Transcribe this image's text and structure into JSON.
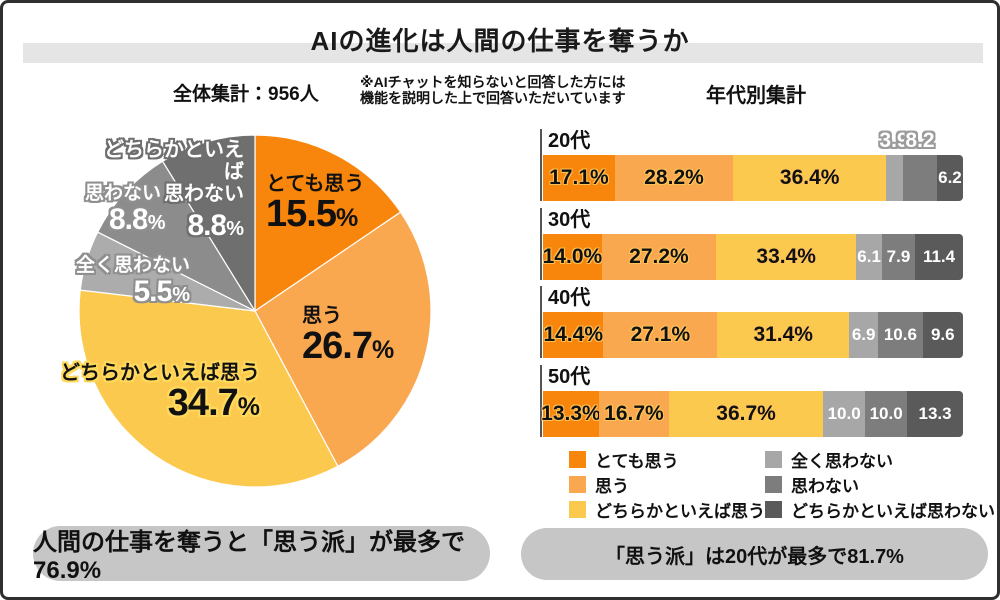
{
  "title": "AIの進化は人間の仕事を奪うか",
  "header": {
    "total_label": "全体集計：956人",
    "note_line1": "※AIチャットを知らないと回答した方には",
    "note_line2": "機能を説明した上で回答いただいています",
    "age_section_label": "年代別集計"
  },
  "palette": {
    "strong_orange": "#F8860D",
    "orange": "#FAA84F",
    "yellow": "#FCC94F",
    "light_gray": "#A7A7A7",
    "mid_gray": "#7D7D7D",
    "dark_gray": "#5A5A5A",
    "title_band": "#E5E5E5",
    "pill_gray": "#C6C6C6",
    "border": "#2F2F2F"
  },
  "chart_data": [
    {
      "type": "pie",
      "title": "全体集計：956人",
      "labels": [
        "とても思う",
        "思う",
        "どちらかといえば思う",
        "全く思わない",
        "思わない",
        "どちらかといえば思わない"
      ],
      "values": [
        15.5,
        26.7,
        34.7,
        5.5,
        8.8,
        8.8
      ],
      "colors": [
        "#F8860D",
        "#FAA84F",
        "#FCC94F",
        "#ACACAC",
        "#8C8C8C",
        "#6F6F6F"
      ],
      "start_angle_deg": 0,
      "clockwise": true,
      "legend_position": "none"
    },
    {
      "type": "bar",
      "variant": "horizontal-stacked",
      "title": "年代別集計",
      "categories": [
        "20代",
        "30代",
        "40代",
        "50代"
      ],
      "series": [
        {
          "name": "とても思う",
          "color": "#F8860D",
          "values": [
            17.1,
            14.0,
            14.4,
            13.3
          ]
        },
        {
          "name": "思う",
          "color": "#FAA84F",
          "values": [
            28.2,
            27.2,
            27.1,
            16.7
          ]
        },
        {
          "name": "どちらかといえば思う",
          "color": "#FCC94F",
          "values": [
            36.4,
            33.4,
            31.4,
            36.7
          ]
        },
        {
          "name": "全く思わない",
          "color": "#A7A7A7",
          "values": [
            3.9,
            6.1,
            6.9,
            10.0
          ]
        },
        {
          "name": "思わない",
          "color": "#7D7D7D",
          "values": [
            8.2,
            7.9,
            10.6,
            10.0
          ]
        },
        {
          "name": "どちらかといえば思わない",
          "color": "#5A5A5A",
          "values": [
            6.2,
            11.4,
            9.6,
            13.3
          ]
        }
      ],
      "value_labels": [
        [
          "17.1%",
          "28.2%",
          "36.4%",
          "3.9",
          "8.2",
          "6.2"
        ],
        [
          "14.0%",
          "27.2%",
          "33.4%",
          "6.1",
          "7.9",
          "11.4"
        ],
        [
          "14.4%",
          "27.1%",
          "31.4%",
          "6.9",
          "10.6",
          "9.6"
        ],
        [
          "13.3%",
          "16.7%",
          "36.7%",
          "10.0",
          "10.0",
          "13.3"
        ]
      ],
      "outside_label_indices": [
        [
          3,
          4
        ],
        [],
        [],
        []
      ],
      "xlim": [
        0,
        100
      ],
      "legend_position": "bottom"
    }
  ],
  "pie_labels": [
    {
      "name": "とても思う",
      "value": "15.5",
      "unit": "%"
    },
    {
      "name": "思う",
      "value": "26.7",
      "unit": "%"
    },
    {
      "name": "どちらかといえば思う",
      "value": "34.7",
      "unit": "%"
    },
    {
      "name": "全く思わない",
      "value": "5.5",
      "unit": "%"
    },
    {
      "name": "思わない",
      "value": "8.8",
      "unit": "%"
    },
    {
      "name_line1": "どちらかといえば",
      "name_line2": "思わない",
      "value": "8.8",
      "unit": "%"
    }
  ],
  "footers": {
    "left": "人間の仕事を奪うと「思う派」が最多で76.9%",
    "right": "「思う派」は20代が最多で81.7%"
  }
}
